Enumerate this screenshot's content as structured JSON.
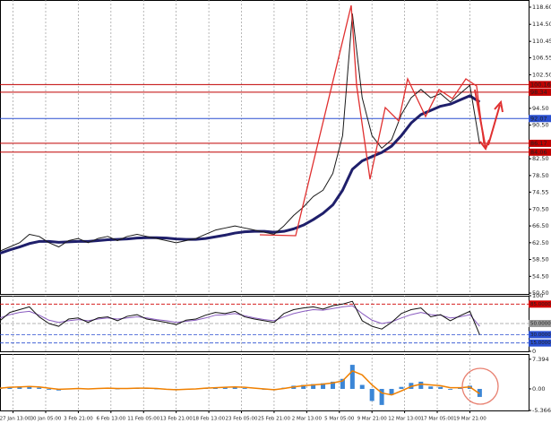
{
  "chart_data": [
    {
      "type": "line",
      "x": [
        0,
        3,
        6,
        9,
        12,
        15,
        18,
        21,
        24,
        27,
        30,
        33,
        36,
        39,
        42,
        45,
        48,
        51,
        54,
        57,
        60,
        63,
        66,
        69,
        72,
        75,
        78,
        81,
        84,
        87,
        90,
        93,
        96,
        99,
        102,
        105,
        108,
        111,
        114,
        117,
        120,
        123,
        126,
        129,
        132,
        135,
        138,
        141,
        144,
        147
      ],
      "xlim": [
        0,
        162
      ],
      "ylim": [
        50.3,
        120.3
      ],
      "yticks": [
        {
          "value": 118.6,
          "label": "118.60"
        },
        {
          "value": 114.5,
          "label": "114.50"
        },
        110.45,
        106.55,
        {
          "value": 102.5,
          "label": "102.50"
        },
        {
          "value": 94.5,
          "label": "94.50"
        },
        {
          "value": 90.5,
          "label": "90.50"
        },
        {
          "value": 82.5,
          "label": "82.50"
        },
        {
          "value": 78.5,
          "label": "78.50"
        },
        74.55,
        {
          "value": 70.5,
          "label": "70.50"
        },
        {
          "value": 66.5,
          "label": "66.50"
        },
        {
          "value": 62.5,
          "label": "62.50"
        },
        {
          "value": 58.5,
          "label": "58.50"
        },
        {
          "value": 54.5,
          "label": "54.50"
        },
        {
          "value": 50.5,
          "label": "50.50"
        }
      ],
      "levels": [
        {
          "value": 100.16,
          "color": "#c00000"
        },
        {
          "value": 98.34,
          "color": "#c00000"
        },
        {
          "value": 92.07,
          "color": "#2a4fd0"
        },
        {
          "value": 86.17,
          "color": "#c00000"
        },
        {
          "value": 84.06,
          "color": "#c00000"
        }
      ],
      "series": [
        {
          "color": "#1f1f6b",
          "width": 3,
          "values": [
            60,
            60.8,
            61.5,
            62.3,
            62.8,
            62.8,
            62.6,
            62.7,
            62.8,
            62.8,
            63,
            63.2,
            63.3,
            63.4,
            63.6,
            63.7,
            63.7,
            63.6,
            63.4,
            63.3,
            63.3,
            63.5,
            63.9,
            64.3,
            64.8,
            65.1,
            65.2,
            65.2,
            65,
            65.2,
            65.8,
            66.7,
            68,
            69.5,
            71.5,
            75,
            80,
            82,
            83,
            84,
            85.5,
            88,
            91,
            93,
            94,
            95,
            95.5,
            96.5,
            97.5,
            96
          ]
        },
        {
          "color": "#1a1a1a",
          "width": 1,
          "values": [
            60.5,
            61.5,
            62.5,
            64.5,
            64,
            62.5,
            61.5,
            63,
            63.5,
            62.5,
            63.5,
            64,
            63,
            64,
            64.5,
            64,
            63.5,
            63,
            62.5,
            63,
            63.5,
            64.5,
            65.5,
            66,
            66.5,
            66,
            65.5,
            65,
            64.5,
            66.5,
            69,
            71,
            73.5,
            75,
            79,
            88,
            117,
            97,
            88,
            85,
            87,
            93,
            97,
            99,
            97,
            98,
            96,
            98,
            100,
            86
          ]
        }
      ]
    },
    {
      "type": "line",
      "x": [
        0,
        3,
        6,
        9,
        12,
        15,
        18,
        21,
        24,
        27,
        30,
        33,
        36,
        39,
        42,
        45,
        48,
        51,
        54,
        57,
        60,
        63,
        66,
        69,
        72,
        75,
        78,
        81,
        84,
        87,
        90,
        93,
        96,
        99,
        102,
        105,
        108,
        111,
        114,
        117,
        120,
        123,
        126,
        129,
        132,
        135,
        138,
        141,
        144,
        147
      ],
      "xlim": [
        0,
        162
      ],
      "ylim": [
        0,
        100
      ],
      "yticks": [
        100,
        {
          "value": 85,
          "label": "85.0000",
          "color": "#d00000"
        },
        {
          "value": 50,
          "label": "50.0000",
          "color": "#9a9a9a"
        },
        {
          "value": 30,
          "label": "30.0000",
          "color": "#2a4fd0"
        },
        {
          "value": 15,
          "label": "15.0000",
          "color": "#2a4fd0"
        },
        0
      ],
      "series": [
        {
          "color": "#8a5cc0",
          "width": 1,
          "values": [
            60,
            66,
            70,
            72,
            65,
            56,
            52,
            55,
            57,
            55,
            58,
            60,
            58,
            60,
            62,
            60,
            57,
            55,
            52,
            54,
            56,
            60,
            65,
            66,
            68,
            64,
            60,
            57,
            55,
            62,
            68,
            72,
            75,
            74,
            77,
            80,
            82,
            68,
            56,
            50,
            53,
            60,
            66,
            70,
            66,
            65,
            60,
            62,
            66,
            45
          ]
        },
        {
          "color": "#111111",
          "width": 1,
          "values": [
            55,
            70,
            75,
            80,
            62,
            50,
            45,
            58,
            60,
            52,
            60,
            62,
            55,
            63,
            66,
            58,
            55,
            52,
            48,
            56,
            58,
            65,
            70,
            68,
            72,
            62,
            58,
            55,
            52,
            68,
            75,
            78,
            80,
            76,
            82,
            85,
            90,
            55,
            45,
            40,
            52,
            68,
            75,
            78,
            62,
            66,
            55,
            64,
            72,
            30
          ]
        }
      ]
    },
    {
      "type": "combo",
      "x": [
        0,
        3,
        6,
        9,
        12,
        15,
        18,
        21,
        24,
        27,
        30,
        33,
        36,
        39,
        42,
        45,
        48,
        51,
        54,
        57,
        60,
        63,
        66,
        69,
        72,
        75,
        78,
        81,
        84,
        87,
        90,
        93,
        96,
        99,
        102,
        105,
        108,
        111,
        114,
        117,
        120,
        123,
        126,
        129,
        132,
        135,
        138,
        141,
        144,
        147
      ],
      "xlim": [
        0,
        162
      ],
      "ylim": [
        -5.3664,
        8.7
      ],
      "yticks": [
        7.394,
        {
          "value": 0,
          "label": "0.00"
        },
        -5.3664
      ],
      "xticks": [
        {
          "value": 4,
          "label": "27 Jan 13:00"
        },
        {
          "value": 14,
          "label": "30 Jan 05:00"
        },
        {
          "value": 24,
          "label": "3 Feb 21:00"
        },
        {
          "value": 34,
          "label": "6 Feb 13:00"
        },
        {
          "value": 44,
          "label": "11 Feb 05:00"
        },
        {
          "value": 54,
          "label": "13 Feb 21:00"
        },
        {
          "value": 64,
          "label": "18 Feb 13:00"
        },
        {
          "value": 74,
          "label": "23 Feb 05:00"
        },
        {
          "value": 84,
          "label": "25 Feb 21:00"
        },
        {
          "value": 94,
          "label": "2 Mar 13:00"
        },
        {
          "value": 104,
          "label": "5 Mar 05:00"
        },
        {
          "value": 114,
          "label": "9 Mar 21:00"
        },
        {
          "value": 124,
          "label": "12 Mar 13:00"
        },
        {
          "value": 134,
          "label": "17 Mar 05:00"
        },
        {
          "value": 144,
          "label": "19 Mar 21:00"
        }
      ],
      "series": [
        {
          "type": "bar",
          "color": "#3b86d6",
          "values": [
            0.3,
            0.5,
            0.6,
            0.7,
            0.3,
            -0.2,
            -0.4,
            0,
            0.2,
            -0.1,
            0.2,
            0.3,
            -0.1,
            0.2,
            0.3,
            0.1,
            -0.1,
            -0.2,
            -0.3,
            0,
            0.1,
            0.3,
            0.4,
            0.5,
            0.5,
            0.2,
            0,
            -0.2,
            -0.3,
            0.3,
            0.8,
            1,
            1.2,
            1.4,
            1.8,
            2.5,
            6,
            1,
            -3,
            -4,
            -1.5,
            0.5,
            1.5,
            1.8,
            0.6,
            0.5,
            -0.2,
            0.4,
            0.8,
            -2
          ]
        },
        {
          "type": "line",
          "color": "#f08000",
          "width": 1.5,
          "values": [
            0.2,
            0.4,
            0.5,
            0.6,
            0.5,
            0.2,
            -0.1,
            0,
            0.1,
            0,
            0.1,
            0.2,
            0.1,
            0.1,
            0.2,
            0.2,
            0.1,
            -0.1,
            -0.2,
            -0.1,
            0,
            0.2,
            0.3,
            0.4,
            0.5,
            0.4,
            0.2,
            0,
            -0.2,
            0.1,
            0.5,
            0.8,
            1,
            1.2,
            1.5,
            2,
            4.5,
            3.5,
            1,
            -1,
            -1.5,
            -0.5,
            0.6,
            1.2,
            1,
            0.8,
            0.3,
            0.3,
            0.5,
            -1.2
          ]
        }
      ]
    }
  ]
}
